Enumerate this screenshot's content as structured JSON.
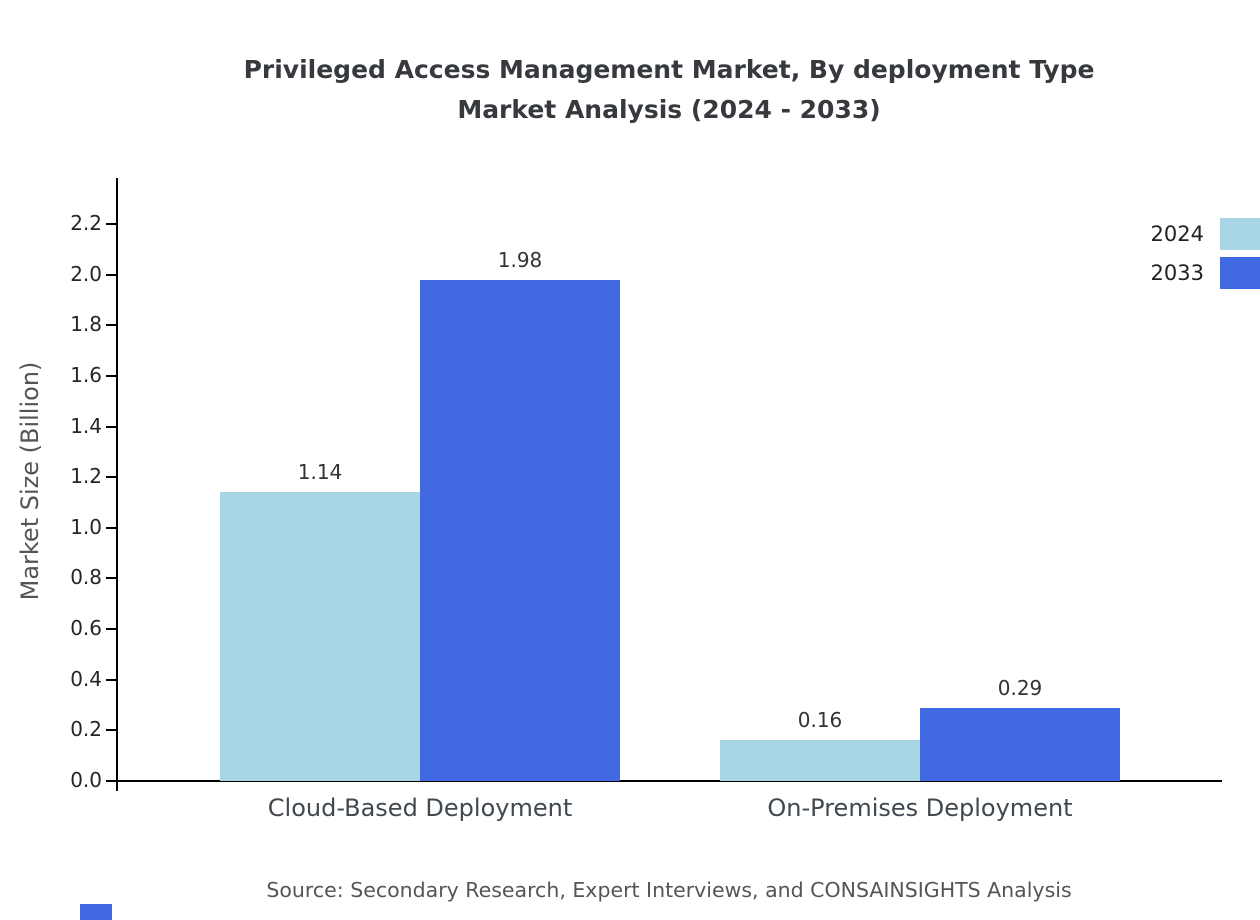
{
  "title": {
    "line1": "Privileged Access Management Market, By deployment Type",
    "line2": "Market Analysis (2024 - 2033)"
  },
  "source": "Source: Secondary Research, Expert Interviews, and CONSAINSIGHTS Analysis",
  "colors": {
    "series_2024": "#a9d6e5",
    "series_2033": "#4169e1",
    "axis": "#000000",
    "title_text": "#36393e",
    "muted_text": "#555555"
  },
  "chart_data": {
    "type": "bar",
    "title": "Privileged Access Management Market, By deployment Type Market Analysis (2024 - 2033)",
    "categories": [
      "Cloud-Based Deployment",
      "On-Premises Deployment"
    ],
    "series": [
      {
        "name": "2024",
        "color": "#a9d6e5",
        "values": [
          1.14,
          0.16
        ]
      },
      {
        "name": "2033",
        "color": "#4169e1",
        "values": [
          1.98,
          0.29
        ]
      }
    ],
    "value_labels": [
      [
        "1.14",
        "0.16"
      ],
      [
        "1.98",
        "0.29"
      ]
    ],
    "xlabel": "",
    "ylabel": "Market Size (Billion)",
    "ylim": [
      0.0,
      2.37
    ],
    "yticks": [
      0.0,
      0.2,
      0.4,
      0.6,
      0.8,
      1.0,
      1.2,
      1.4,
      1.6,
      1.8,
      2.0,
      2.2
    ],
    "grid": false,
    "legend_position": "top-right"
  }
}
